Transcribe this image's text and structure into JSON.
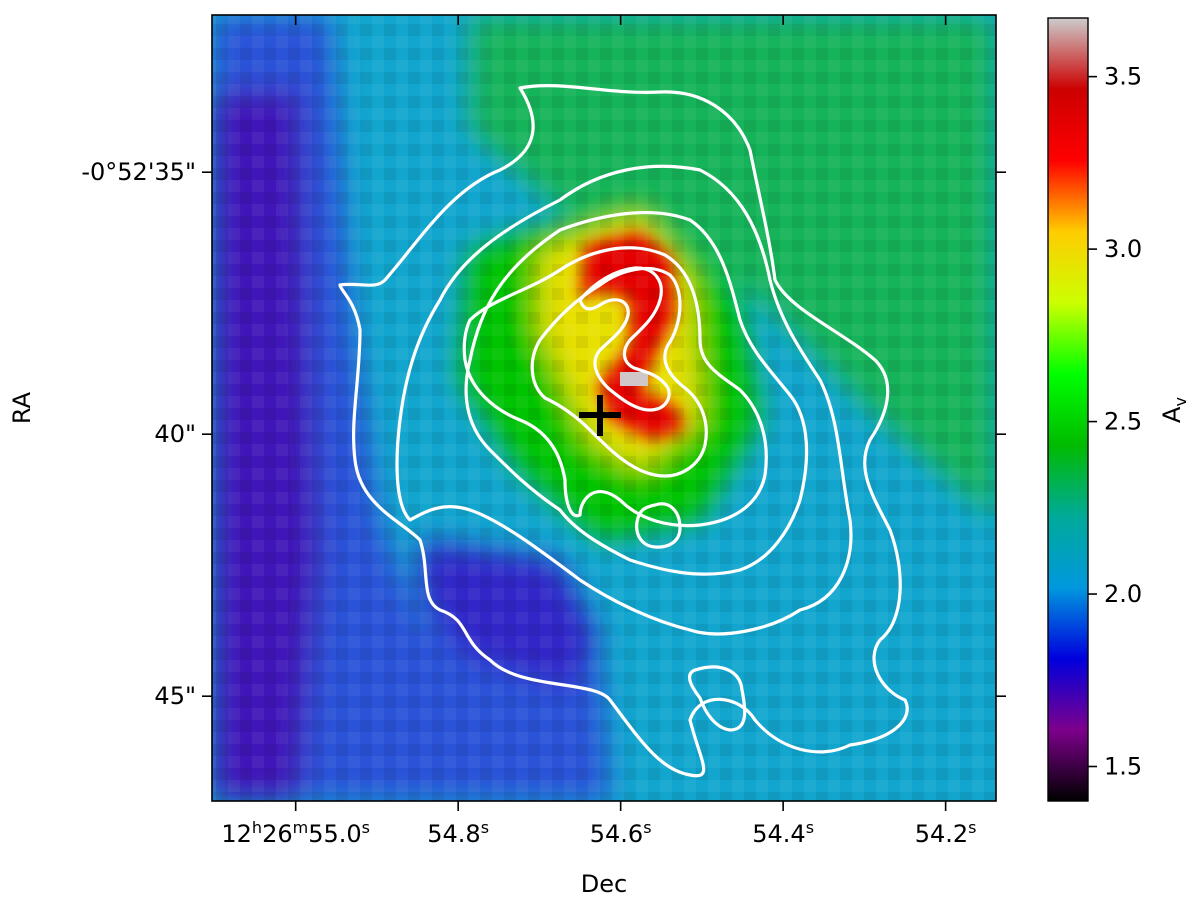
{
  "chart_data": {
    "type": "heatmap",
    "xlabel": "Dec",
    "ylabel": "RA",
    "x_ticks": [
      {
        "value": "55.0",
        "text": "12ʰ26ᵐ55.0ˢ",
        "parts": [
          {
            "t": "12"
          },
          {
            "t": "h",
            "sup": true
          },
          {
            "t": "26"
          },
          {
            "t": "m",
            "sup": true
          },
          {
            "t": "55.0"
          },
          {
            "t": "s",
            "sup": true
          }
        ]
      },
      {
        "value": "54.8",
        "text": "54.8ˢ",
        "parts": [
          {
            "t": "54.8"
          },
          {
            "t": "s",
            "sup": true
          }
        ]
      },
      {
        "value": "54.6",
        "text": "54.6ˢ",
        "parts": [
          {
            "t": "54.6"
          },
          {
            "t": "s",
            "sup": true
          }
        ]
      },
      {
        "value": "54.4",
        "text": "54.4ˢ",
        "parts": [
          {
            "t": "54.4"
          },
          {
            "t": "s",
            "sup": true
          }
        ]
      },
      {
        "value": "54.2",
        "text": "54.2ˢ",
        "parts": [
          {
            "t": "54.2"
          },
          {
            "t": "s",
            "sup": true
          }
        ]
      }
    ],
    "x_range_s": [
      55.103,
      54.138
    ],
    "y_ticks": [
      {
        "value": 35,
        "text": "-0°52'35\""
      },
      {
        "value": 40,
        "text": "40\""
      },
      {
        "value": 45,
        "text": "45\""
      }
    ],
    "y_range_arcsec": [
      32.0,
      47.0
    ],
    "colorbar": {
      "label": "A",
      "label_sub": "v",
      "range": [
        1.4,
        3.67
      ],
      "ticks": [
        1.5,
        2.0,
        2.5,
        3.0,
        3.5
      ],
      "colormap": "nipy_spectral",
      "colors": [
        "#000000",
        "#7d008c",
        "#0000dd",
        "#0098dd",
        "#00aa99",
        "#00bb00",
        "#00ff00",
        "#ccff00",
        "#ffcc00",
        "#ff0000",
        "#cc0000",
        "#cccccc"
      ]
    },
    "field_regions": [
      {
        "name": "purple-band",
        "dec_s": 54.98,
        "ra_arcsec": 39.0,
        "value": 1.65
      },
      {
        "name": "blue-strip",
        "dec_s": 54.86,
        "ra_arcsec": 39.5,
        "value": 1.85
      },
      {
        "name": "blue-south-lobe",
        "dec_s": 54.72,
        "ra_arcsec": 43.3,
        "value": 1.75
      },
      {
        "name": "background-teal",
        "dec_s": 54.5,
        "ra_arcsec": 44.0,
        "value": 2.05
      },
      {
        "name": "green-northeast",
        "dec_s": 54.35,
        "ra_arcsec": 34.5,
        "value": 2.5
      },
      {
        "name": "central-ridge",
        "dec_s": 54.6,
        "ra_arcsec": 38.0,
        "value": 3.05
      },
      {
        "name": "peak-north",
        "dec_s": 54.62,
        "ra_arcsec": 37.4,
        "value": 3.4
      },
      {
        "name": "peak-south",
        "dec_s": 54.58,
        "ra_arcsec": 39.6,
        "value": 3.45
      },
      {
        "name": "max-pixel",
        "dec_s": 54.6,
        "ra_arcsec": 39.2,
        "value": 3.67
      }
    ],
    "contours": {
      "color": "#ffffff",
      "levels": 6
    },
    "marker": {
      "symbol": "+",
      "color": "#000000",
      "dec_s": 54.64,
      "ra_arcsec": 39.6
    }
  }
}
